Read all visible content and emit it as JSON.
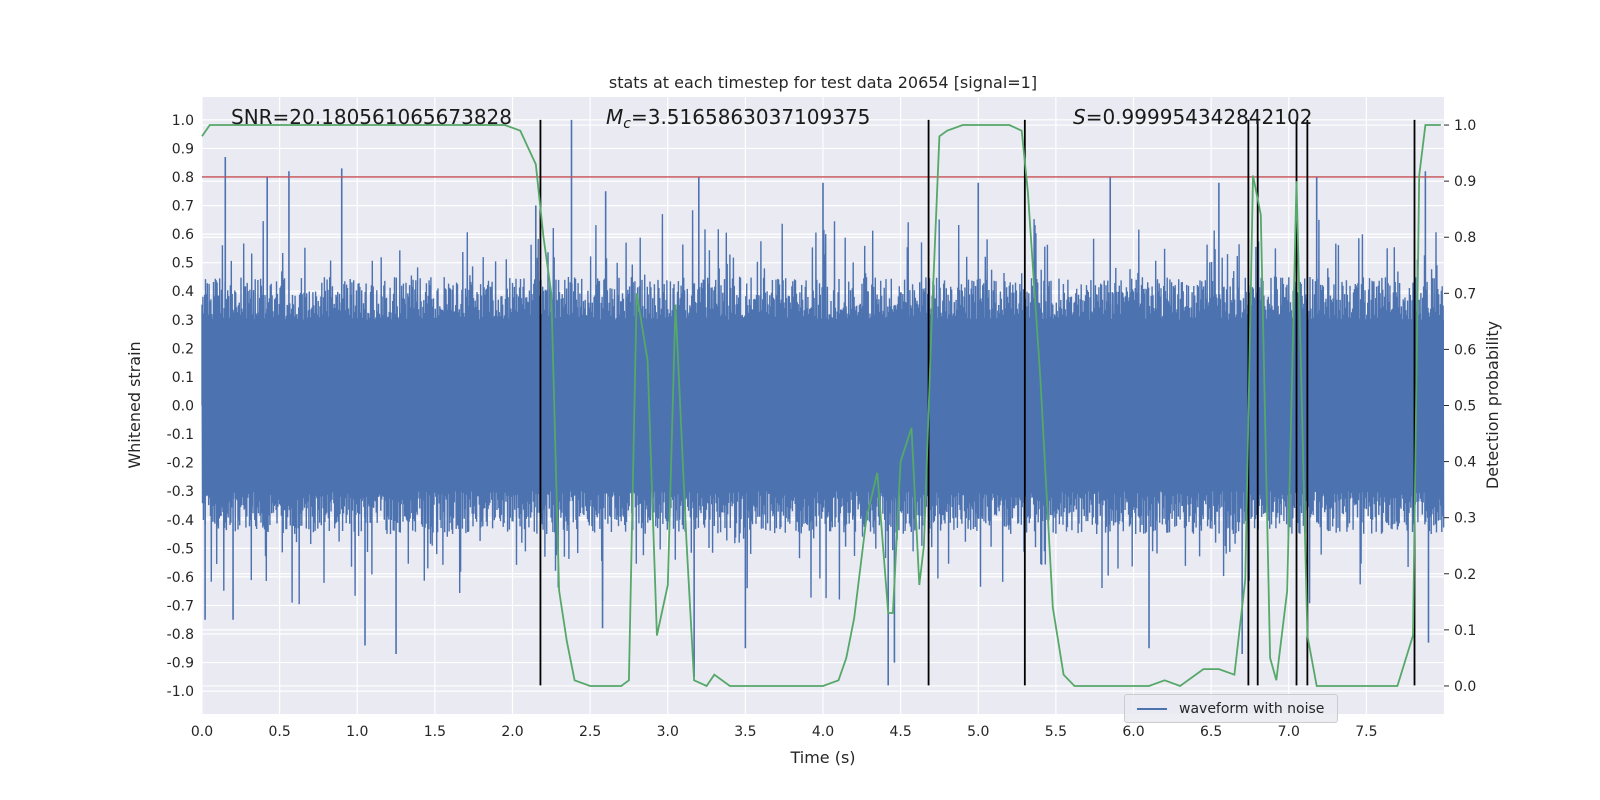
{
  "chart_data": {
    "type": "line",
    "title": "stats at each timestep for test data 20654 [signal=1]",
    "xlabel": "Time (s)",
    "ylabel": "Whitened strain",
    "y2label": "Detection probability",
    "xlim": [
      0.0,
      8.0
    ],
    "ylim": [
      -1.08,
      1.08
    ],
    "y2lim": [
      -0.05,
      1.05
    ],
    "xticks": [
      0.0,
      0.5,
      1.0,
      1.5,
      2.0,
      2.5,
      3.0,
      3.5,
      4.0,
      4.5,
      5.0,
      5.5,
      6.0,
      6.5,
      7.0,
      7.5
    ],
    "xtick_labels": [
      "0.0",
      "0.5",
      "1.0",
      "1.5",
      "2.0",
      "2.5",
      "3.0",
      "3.5",
      "4.0",
      "4.5",
      "5.0",
      "5.5",
      "6.0",
      "6.5",
      "7.0",
      "7.5"
    ],
    "yticks": [
      1.0,
      0.9,
      0.8,
      0.7,
      0.6,
      0.5,
      0.4,
      0.3,
      0.2,
      0.1,
      0.0,
      -0.1,
      -0.2,
      -0.3,
      -0.4,
      -0.5,
      -0.6,
      -0.7,
      -0.8,
      -0.9,
      -1.0
    ],
    "ytick_labels": [
      "1.0",
      "0.9",
      "0.8",
      "0.7",
      "0.6",
      "0.5",
      "0.4",
      "0.3",
      "0.2",
      "0.1",
      "0.0",
      "-0.1",
      "-0.2",
      "-0.3",
      "-0.4",
      "-0.5",
      "-0.6",
      "-0.7",
      "-0.8",
      "-0.9",
      "-1.0"
    ],
    "y2ticks": [
      1.0,
      0.9,
      0.8,
      0.7,
      0.6,
      0.5,
      0.4,
      0.3,
      0.2,
      0.1,
      0.0
    ],
    "y2tick_labels": [
      "1.0",
      "0.9",
      "0.8",
      "0.7",
      "0.6",
      "0.5",
      "0.4",
      "0.3",
      "0.2",
      "0.1",
      "0.0"
    ],
    "annotations": {
      "snr": "SNR=20.180561065673828",
      "mc_symbol": "M",
      "mc_sub": "c",
      "mc_value": "=3.5165863037109375",
      "s_symbol": "S",
      "s_value": "=0.999954342842102"
    },
    "threshold": {
      "y": 0.8,
      "color": "#c44e52"
    },
    "vlines": [
      2.18,
      4.68,
      5.3,
      6.74,
      6.8,
      7.05,
      7.12,
      7.81
    ],
    "vline_range": [
      -0.98,
      1.0
    ],
    "waveform": {
      "name": "waveform with noise",
      "color": "#4c72b0",
      "envelope_min": 0.3,
      "envelope_max": 0.45,
      "spikes": [
        {
          "t": 0.15,
          "v": 0.87
        },
        {
          "t": 0.42,
          "v": 0.8
        },
        {
          "t": 0.56,
          "v": 0.82
        },
        {
          "t": 0.9,
          "v": 0.83
        },
        {
          "t": 0.02,
          "v": -0.75
        },
        {
          "t": 0.2,
          "v": -0.75
        },
        {
          "t": 1.05,
          "v": -0.84
        },
        {
          "t": 1.25,
          "v": -0.87
        },
        {
          "t": 2.15,
          "v": 0.7
        },
        {
          "t": 2.38,
          "v": 1.0
        },
        {
          "t": 2.6,
          "v": 0.75
        },
        {
          "t": 3.17,
          "v": -0.95
        },
        {
          "t": 3.2,
          "v": 0.8
        },
        {
          "t": 2.58,
          "v": -0.78
        },
        {
          "t": 3.5,
          "v": -0.85
        },
        {
          "t": 4.0,
          "v": 0.78
        },
        {
          "t": 4.42,
          "v": -0.98
        },
        {
          "t": 4.46,
          "v": -0.9
        },
        {
          "t": 5.0,
          "v": 0.78
        },
        {
          "t": 5.85,
          "v": 0.8
        },
        {
          "t": 6.1,
          "v": -0.85
        },
        {
          "t": 6.55,
          "v": 0.78
        },
        {
          "t": 6.7,
          "v": -0.87
        },
        {
          "t": 7.18,
          "v": 0.8
        },
        {
          "t": 7.88,
          "v": 0.82
        },
        {
          "t": 7.9,
          "v": -0.83
        }
      ]
    },
    "detection": {
      "color": "#55a868",
      "x": [
        0.0,
        0.05,
        0.1,
        0.2,
        0.4,
        0.6,
        0.8,
        1.0,
        1.2,
        1.4,
        1.6,
        1.8,
        1.95,
        2.05,
        2.1,
        2.15,
        2.2,
        2.25,
        2.3,
        2.35,
        2.4,
        2.5,
        2.6,
        2.7,
        2.75,
        2.8,
        2.87,
        2.93,
        3.0,
        3.05,
        3.12,
        3.17,
        3.25,
        3.3,
        3.4,
        3.45,
        3.6,
        3.8,
        4.0,
        4.1,
        4.15,
        4.2,
        4.28,
        4.35,
        4.42,
        4.45,
        4.5,
        4.57,
        4.62,
        4.65,
        4.7,
        4.75,
        4.8,
        4.9,
        5.0,
        5.1,
        5.2,
        5.28,
        5.32,
        5.4,
        5.48,
        5.55,
        5.62,
        5.7,
        5.9,
        6.1,
        6.2,
        6.3,
        6.45,
        6.55,
        6.65,
        6.72,
        6.77,
        6.82,
        6.88,
        6.92,
        6.99,
        7.05,
        7.12,
        7.18,
        7.22,
        7.3,
        7.4,
        7.5,
        7.6,
        7.7,
        7.8,
        7.84,
        7.88,
        7.92,
        7.98
      ],
      "y": [
        0.98,
        1.0,
        1.0,
        1.0,
        1.0,
        1.0,
        1.0,
        1.0,
        1.0,
        1.0,
        1.0,
        1.0,
        1.0,
        0.99,
        0.96,
        0.93,
        0.8,
        0.7,
        0.17,
        0.08,
        0.01,
        0.0,
        0.0,
        0.0,
        0.01,
        0.7,
        0.58,
        0.09,
        0.18,
        0.68,
        0.26,
        0.01,
        0.0,
        0.02,
        0.0,
        0.0,
        0.0,
        0.0,
        0.0,
        0.01,
        0.05,
        0.12,
        0.3,
        0.38,
        0.13,
        0.13,
        0.4,
        0.46,
        0.18,
        0.25,
        0.65,
        0.98,
        0.99,
        1.0,
        1.0,
        1.0,
        1.0,
        0.99,
        0.88,
        0.55,
        0.14,
        0.02,
        0.0,
        0.0,
        0.0,
        0.0,
        0.01,
        0.0,
        0.03,
        0.03,
        0.02,
        0.19,
        0.91,
        0.84,
        0.05,
        0.01,
        0.17,
        0.9,
        0.09,
        0.0,
        0.0,
        0.0,
        0.0,
        0.0,
        0.0,
        0.0,
        0.09,
        0.91,
        1.0,
        1.0,
        1.0
      ]
    },
    "legend": {
      "label": "waveform with noise",
      "position": "lower-right"
    }
  }
}
